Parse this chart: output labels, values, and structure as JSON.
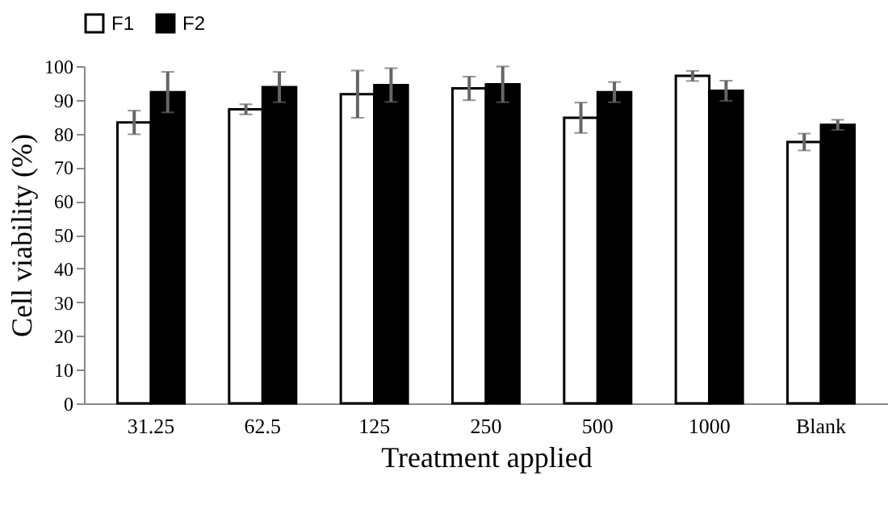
{
  "chart_data": {
    "type": "bar",
    "xlabel": "Treatment applied",
    "ylabel": "Cell viability (%)",
    "categories": [
      "31.25",
      "62.5",
      "125",
      "250",
      "500",
      "1000",
      "Blank"
    ],
    "series": [
      {
        "name": "F1",
        "color": "#ffffff",
        "values": [
          83.3,
          87.2,
          91.7,
          93.4,
          84.7,
          97.1,
          77.5
        ],
        "errors": [
          3.5,
          1.5,
          7,
          3.5,
          4.5,
          1.5,
          2.5
        ]
      },
      {
        "name": "F2",
        "color": "#000000",
        "values": [
          92.3,
          93.8,
          94.4,
          94.6,
          92.3,
          92.7,
          82.6
        ],
        "errors": [
          6,
          4.5,
          5,
          5.3,
          3,
          3,
          1.5
        ]
      }
    ],
    "ylim": [
      0,
      100
    ],
    "yticks": [
      0,
      10,
      20,
      30,
      40,
      50,
      60,
      70,
      80,
      90,
      100
    ],
    "legend": "top",
    "grid": false
  }
}
